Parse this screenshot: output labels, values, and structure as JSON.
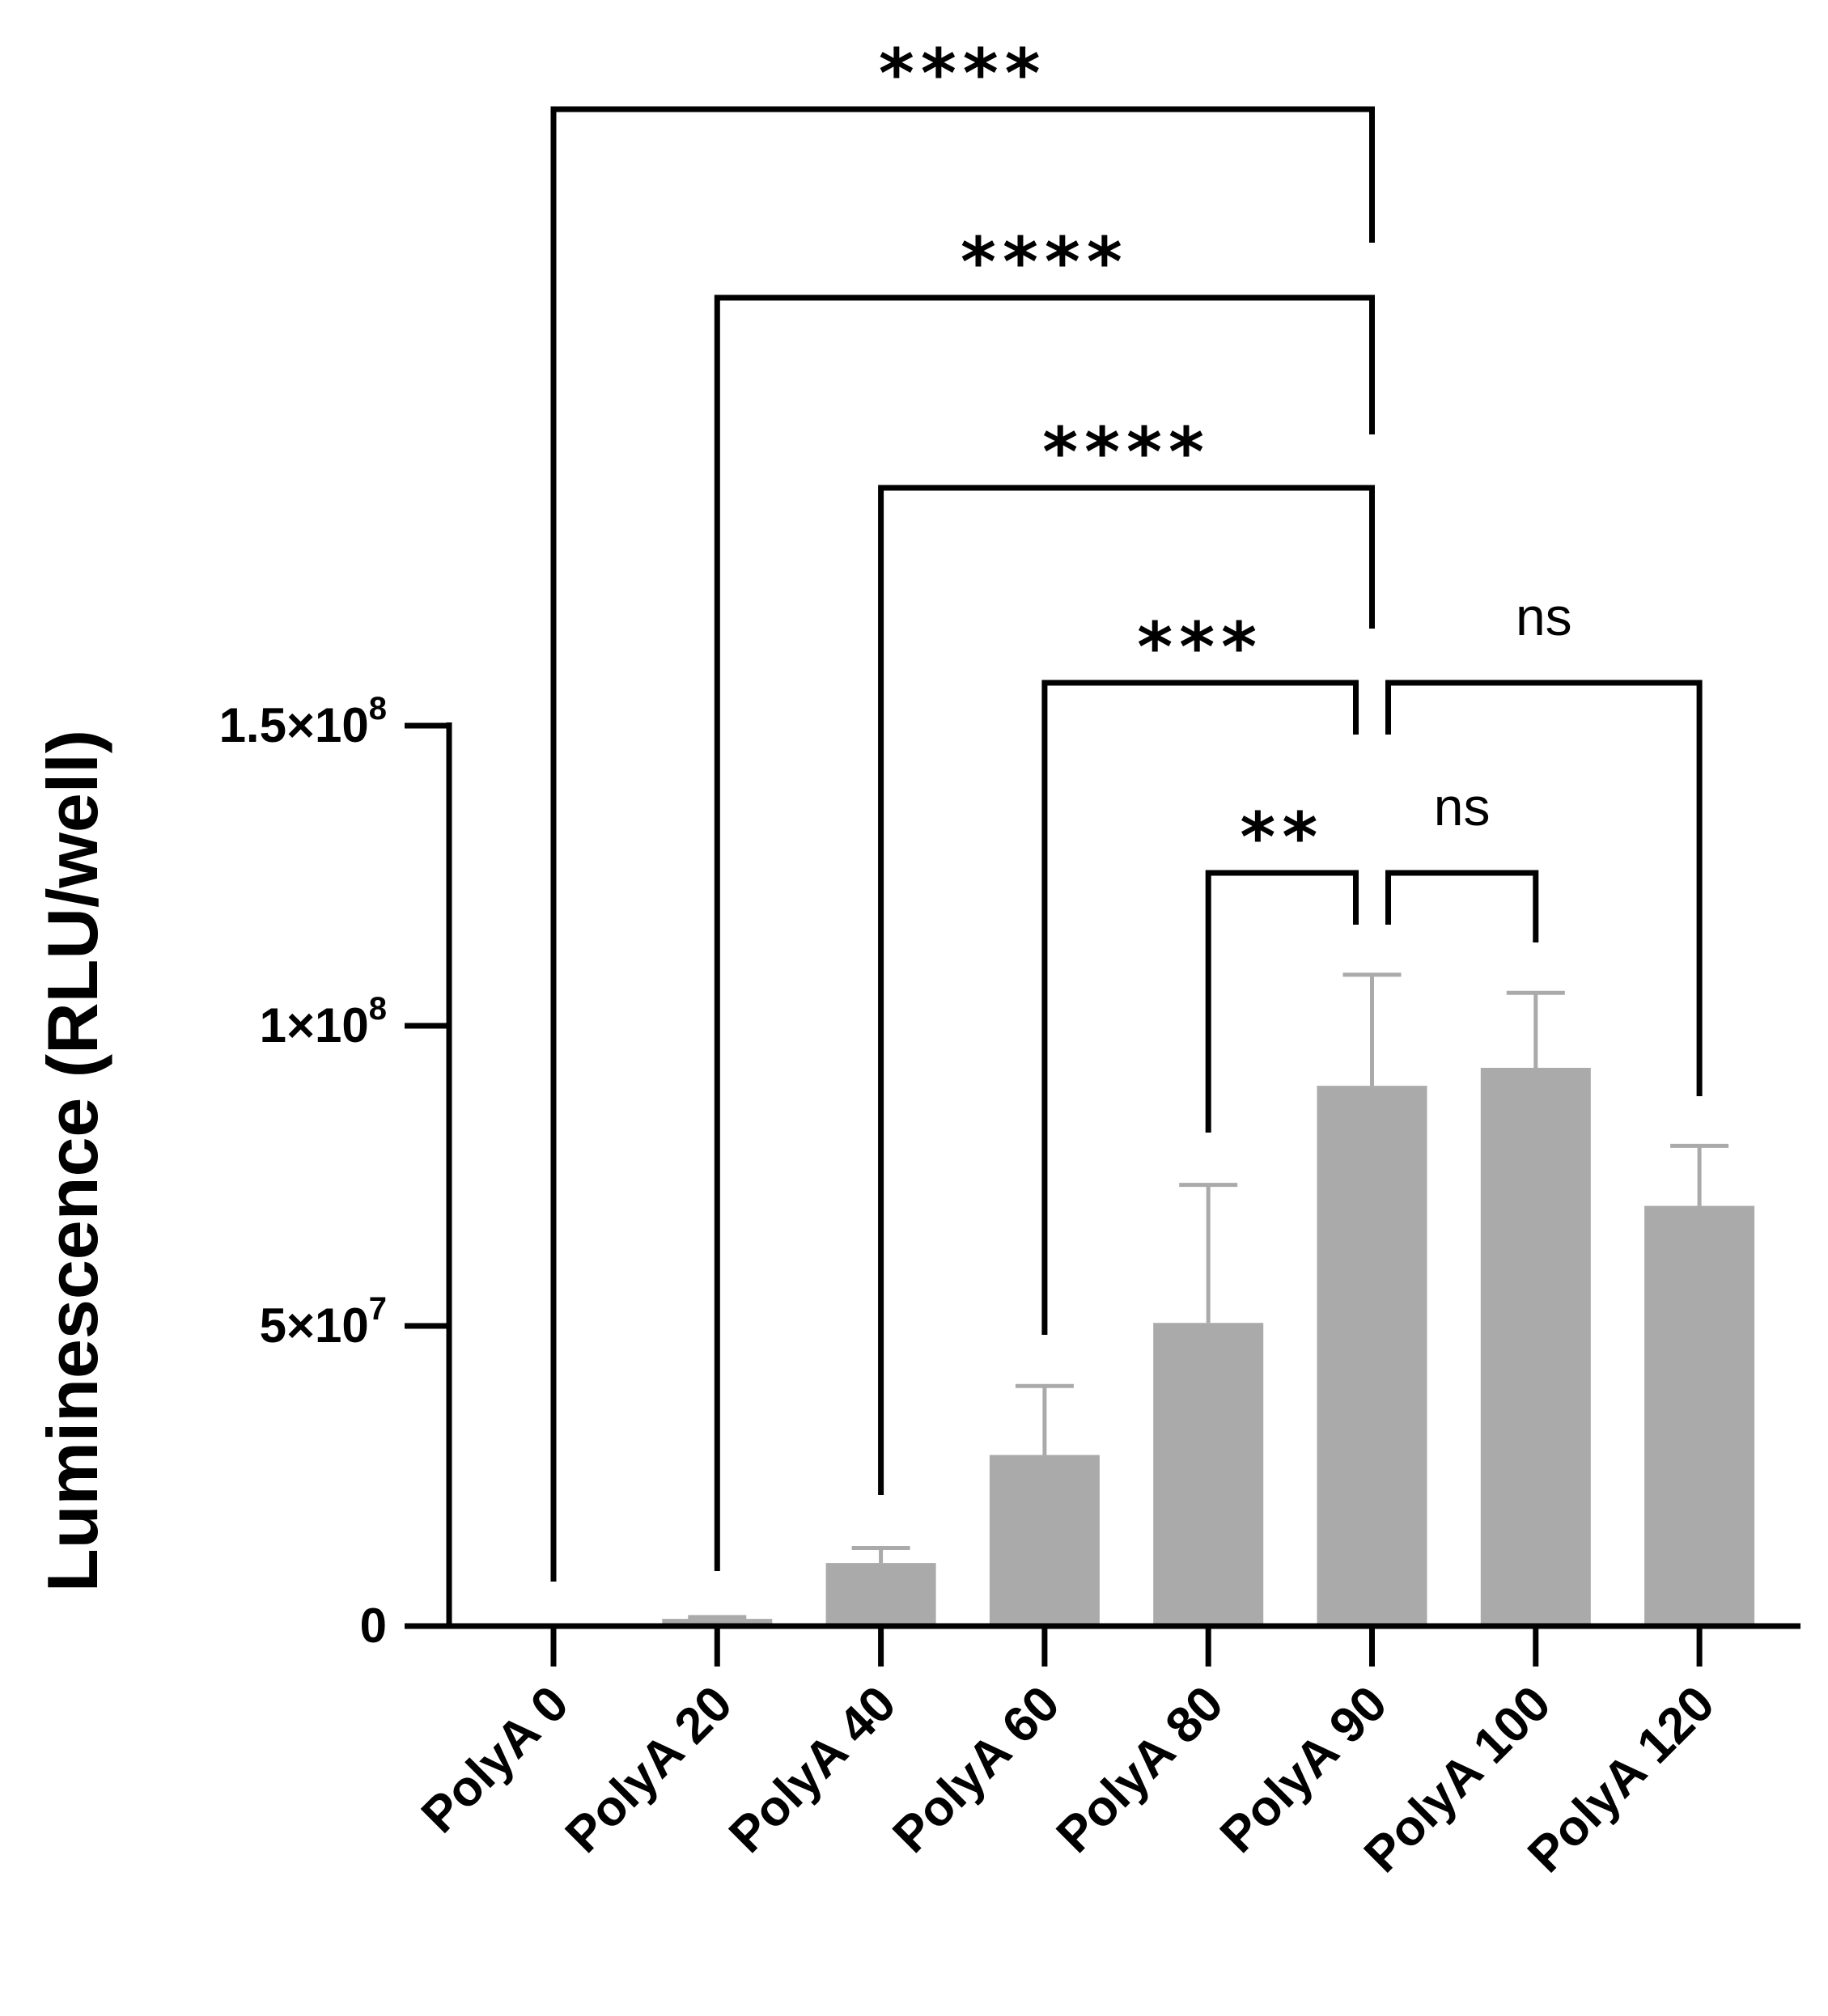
{
  "chart_data": {
    "type": "bar",
    "title": "",
    "xlabel": "",
    "ylabel": "Luminescence (RLU/well)",
    "ylim": [
      0,
      150000000
    ],
    "yticks": [
      {
        "value": 0,
        "mantissa": "0",
        "exponent": ""
      },
      {
        "value": 50000000,
        "mantissa": "5×10",
        "exponent": "7"
      },
      {
        "value": 100000000,
        "mantissa": "1×10",
        "exponent": "8"
      },
      {
        "value": 150000000,
        "mantissa": "1.5×10",
        "exponent": "8"
      }
    ],
    "categories": [
      "PolyA 0",
      "PolyA 20",
      "PolyA 40",
      "PolyA 60",
      "PolyA 80",
      "PolyA 90",
      "PolyA 100",
      "PolyA 120"
    ],
    "values": [
      100000,
      1200000,
      10500000,
      28500000,
      50500000,
      90000000,
      93000000,
      70000000
    ],
    "errors": [
      100000,
      300000,
      2500000,
      11500000,
      23000000,
      18500000,
      12500000,
      10000000
    ],
    "bar_color": "#aaaaaa",
    "comparisons": [
      {
        "from": "PolyA 0",
        "to": "PolyA 90",
        "label": "****"
      },
      {
        "from": "PolyA 20",
        "to": "PolyA 90",
        "label": "****"
      },
      {
        "from": "PolyA 40",
        "to": "PolyA 90",
        "label": "****"
      },
      {
        "from": "PolyA 60",
        "to": "PolyA 90",
        "label": "***"
      },
      {
        "from": "PolyA 80",
        "to": "PolyA 90",
        "label": "**"
      },
      {
        "from": "PolyA 90",
        "to": "PolyA 100",
        "label": "ns"
      },
      {
        "from": "PolyA 90",
        "to": "PolyA 120",
        "label": "ns"
      }
    ]
  }
}
